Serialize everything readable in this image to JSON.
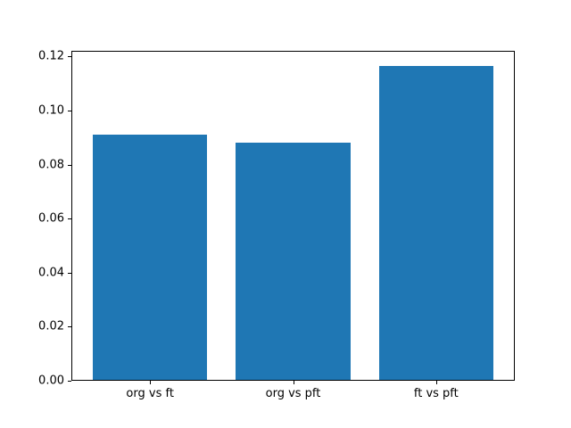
{
  "chart_data": {
    "type": "bar",
    "title": "",
    "xlabel": "",
    "ylabel": "",
    "categories": [
      "org vs ft",
      "org vs pft",
      "ft vs pft"
    ],
    "values": [
      0.0911,
      0.0881,
      0.1165
    ],
    "ylim": [
      0,
      0.1221
    ],
    "xlim": [
      -0.55,
      2.55
    ],
    "bar_width_data_units": 0.8,
    "yticks": [
      {
        "value": 0.0,
        "label": "0.00"
      },
      {
        "value": 0.02,
        "label": "0.02"
      },
      {
        "value": 0.04,
        "label": "0.04"
      },
      {
        "value": 0.06,
        "label": "0.06"
      },
      {
        "value": 0.08,
        "label": "0.08"
      },
      {
        "value": 0.1,
        "label": "0.10"
      },
      {
        "value": 0.12,
        "label": "0.12"
      }
    ],
    "grid": false,
    "legend": null,
    "bar_color": "#1f77b4",
    "spine_color": "#000000",
    "background_color": "#ffffff"
  }
}
